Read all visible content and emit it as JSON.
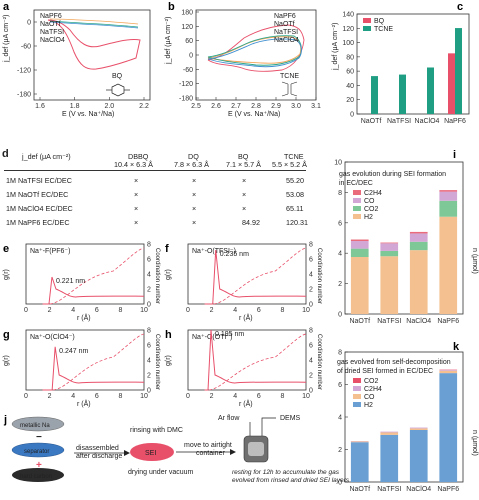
{
  "panels": {
    "a": {
      "label": "a",
      "ylabel": "j_def (μA cm⁻²)",
      "xlabel": "E (V vs. Na⁺/Na)",
      "xticks": [
        "1.6",
        "1.8",
        "2.0",
        "2.2"
      ],
      "yticks": [
        "0",
        "-60",
        "-120",
        "-180"
      ],
      "legend": [
        "NaPF6",
        "NaOTf",
        "NaTFSI",
        "NaClO4"
      ],
      "molecule": "BQ"
    },
    "b": {
      "label": "b",
      "ylabel": "j_def (μA cm⁻²)",
      "xlabel": "E (V vs. Na⁺/Na)",
      "xticks": [
        "2.5",
        "2.6",
        "2.7",
        "2.8",
        "2.9",
        "3.0",
        "3.1"
      ],
      "yticks": [
        "180",
        "120",
        "60",
        "0",
        "-60",
        "-120",
        "-180"
      ],
      "legend": [
        "NaPF6",
        "NaOTf",
        "NaTFSI",
        "NaClO4"
      ],
      "molecule": "TCNE"
    },
    "c": {
      "label": "c"
    },
    "d": {
      "label": "d",
      "header": [
        "j_def (μA cm⁻²)",
        "DBBQ",
        "DQ",
        "BQ",
        "TCNE"
      ],
      "subheader": [
        "",
        "10.4 × 6.3 Å",
        "7.8 × 6.3 Å",
        "7.1 × 5.7 Å",
        "5.5 × 5.2 Å"
      ],
      "rows": [
        [
          "1M NaTFSI EC/DEC",
          "×",
          "×",
          "×",
          "55.20"
        ],
        [
          "1M NaOTf EC/DEC",
          "×",
          "×",
          "×",
          "53.08"
        ],
        [
          "1M NaClO4 EC/DEC",
          "×",
          "×",
          "×",
          "65.11"
        ],
        [
          "1M NaPF6 EC/DEC",
          "×",
          "×",
          "84.92",
          "120.31"
        ]
      ]
    },
    "e": {
      "label": "e",
      "pair": "Na⁺-F(PF6⁻)",
      "peak": "0.221 nm"
    },
    "f": {
      "label": "f",
      "pair": "Na⁺-O(TFSI⁻)",
      "peak": "0.235 nm"
    },
    "g": {
      "label": "g",
      "pair": "Na⁺-O(ClO4⁻)",
      "peak": "0.247 nm"
    },
    "h": {
      "label": "h",
      "pair": "Na⁺-O(OTf⁻)",
      "peak": "0.195 nm"
    },
    "rdf_axes": {
      "ylabel": "g(r)",
      "y2label": "Coordination number",
      "xlabel": "r (Å)"
    },
    "i": {
      "label": "i",
      "title_line1": "gas evolution during SEI formation",
      "title_line2": "in EC/DEC",
      "ylabel": "n (μmol)"
    },
    "j": {
      "label": "j",
      "stack": [
        "metallic Na",
        "separator",
        "hard carbon"
      ],
      "step1": "disassembled",
      "step1b": "after discharge",
      "step2": "rinsing with DMC",
      "sei": "SEI",
      "step3": "drying under vacuum",
      "step4": "move to airtight",
      "step4b": "container",
      "arflow": "Ar flow",
      "dems": "DEMS",
      "note1": "resting for 12h to accumulate the gas",
      "note2": "evolved from rinsed and dried SEI layers"
    },
    "k": {
      "label": "k",
      "title_line1": "gas evolved from self-decomposition",
      "title_line2": "of dried SEI formed in EC/DEC",
      "ylabel": "n (μmol)"
    }
  },
  "chart_data": [
    {
      "panel": "c",
      "type": "bar",
      "ylabel": "j_def (μA cm⁻²)",
      "categories": [
        "NaOTf",
        "NaTFSI",
        "NaClO4",
        "NaPF6"
      ],
      "ylim": [
        0,
        140
      ],
      "yticks": [
        0,
        20,
        40,
        60,
        80,
        100,
        120,
        140
      ],
      "series": [
        {
          "name": "BQ",
          "color": "#e8506a",
          "values": [
            0,
            0,
            0,
            84.92
          ]
        },
        {
          "name": "TCNE",
          "color": "#1f9e84",
          "values": [
            53.08,
            55.2,
            65.11,
            120.31
          ]
        }
      ],
      "legend": "top-left"
    },
    {
      "panel": "i",
      "type": "bar",
      "categories": [
        "NaOTf",
        "NaTFSI",
        "NaClO4",
        "NaPF6"
      ],
      "ylim": [
        0,
        10
      ],
      "yticks": [
        0,
        2,
        4,
        6,
        8,
        10
      ],
      "series": [
        {
          "name": "H2",
          "color": "#f4c08f",
          "values": [
            3.75,
            3.8,
            4.2,
            6.4
          ]
        },
        {
          "name": "CO2",
          "color": "#7dc896",
          "values": [
            0.55,
            0.35,
            0.55,
            1.05
          ]
        },
        {
          "name": "CO",
          "color": "#d2a7d6",
          "values": [
            0.5,
            0.5,
            0.55,
            0.6
          ]
        },
        {
          "name": "C2H4",
          "color": "#ea6b7b",
          "values": [
            0.1,
            0.05,
            0.1,
            0.1
          ]
        }
      ],
      "legend": "top-left"
    },
    {
      "panel": "k",
      "type": "bar",
      "categories": [
        "NaOTf",
        "NaTFSI",
        "NaClO4",
        "NaPF6"
      ],
      "ylim": [
        0,
        8
      ],
      "yticks": [
        0,
        2,
        4,
        6,
        8
      ],
      "series": [
        {
          "name": "H2",
          "color": "#6a9fd4",
          "values": [
            2.45,
            2.9,
            3.2,
            6.7
          ]
        },
        {
          "name": "CO",
          "color": "#f4c08f",
          "values": [
            0.05,
            0.15,
            0.1,
            0.15
          ]
        },
        {
          "name": "C2H4",
          "color": "#d2a7d6",
          "values": [
            0.02,
            0.05,
            0.05,
            0.05
          ]
        },
        {
          "name": "CO2",
          "color": "#e8506a",
          "values": [
            0.0,
            0.0,
            0.0,
            0.02
          ]
        }
      ],
      "legend": "top-left"
    }
  ],
  "colors": {
    "NaPF6": "#e8506a",
    "NaOTf": "#f2a65a",
    "NaTFSI": "#2aa58a",
    "NaClO4": "#3f8fd0"
  }
}
